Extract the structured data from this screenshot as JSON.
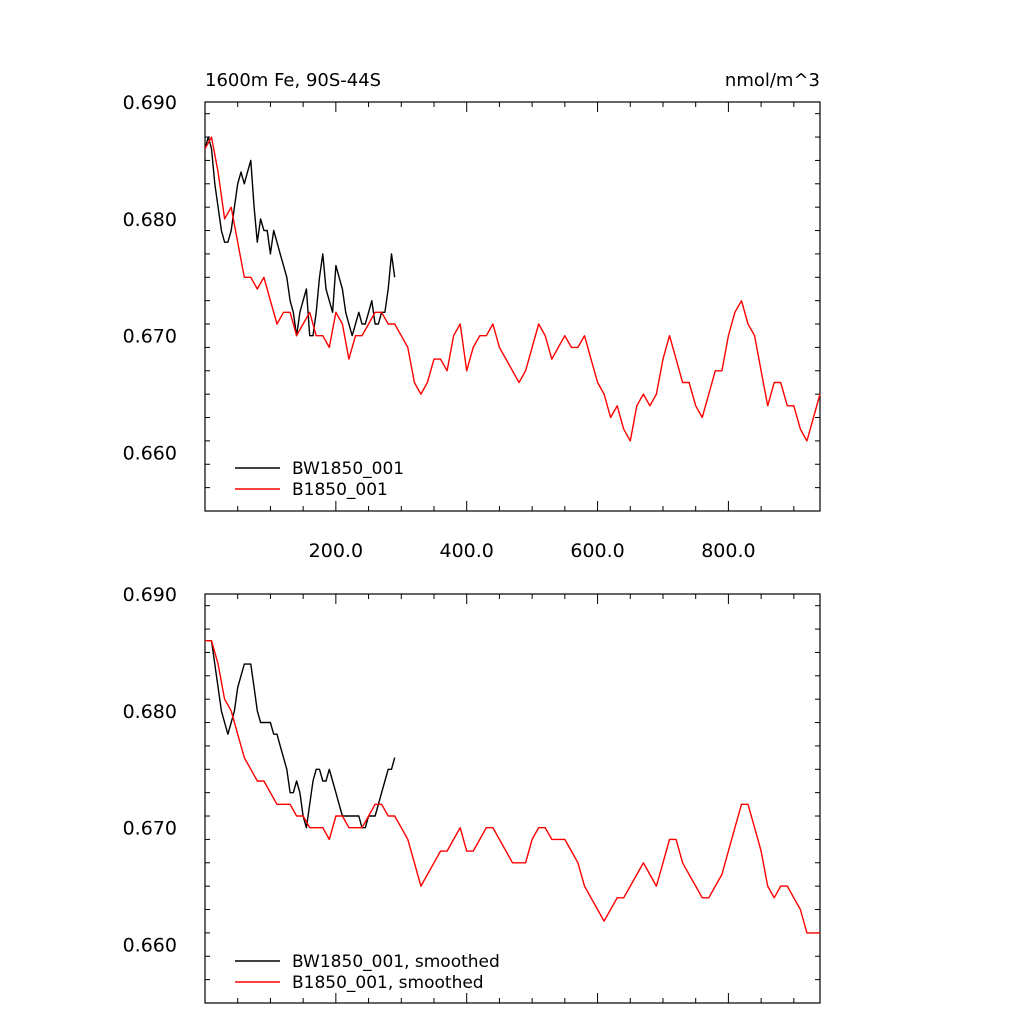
{
  "chart_data": [
    {
      "type": "line",
      "title": "1600m Fe, 90S-44S",
      "units": "nmol/m^3",
      "xlim": [
        0,
        940
      ],
      "ylim": [
        0.655,
        0.69
      ],
      "x_tick_labels": [
        "200.0",
        "400.0",
        "600.0",
        "800.0"
      ],
      "y_tick_labels": [
        "0.690",
        "0.680",
        "0.670",
        "0.660"
      ],
      "legend": "bottom-left",
      "grid": false,
      "series": [
        {
          "name": "BW1850_001",
          "color": "#000000",
          "x": [
            0,
            5,
            10,
            15,
            20,
            25,
            30,
            35,
            40,
            45,
            50,
            55,
            60,
            65,
            70,
            75,
            80,
            85,
            90,
            95,
            100,
            105,
            110,
            115,
            120,
            125,
            130,
            135,
            140,
            145,
            150,
            155,
            160,
            165,
            170,
            175,
            180,
            185,
            190,
            195,
            200,
            205,
            210,
            215,
            220,
            225,
            230,
            235,
            240,
            245,
            250,
            255,
            260,
            265,
            270,
            275,
            280,
            285,
            290
          ],
          "y": [
            0.686,
            0.687,
            0.686,
            0.683,
            0.681,
            0.679,
            0.678,
            0.678,
            0.679,
            0.681,
            0.683,
            0.684,
            0.683,
            0.684,
            0.685,
            0.681,
            0.678,
            0.68,
            0.679,
            0.679,
            0.677,
            0.679,
            0.678,
            0.677,
            0.676,
            0.675,
            0.673,
            0.672,
            0.67,
            0.672,
            0.673,
            0.674,
            0.67,
            0.67,
            0.672,
            0.675,
            0.677,
            0.674,
            0.673,
            0.672,
            0.676,
            0.675,
            0.674,
            0.672,
            0.671,
            0.67,
            0.671,
            0.672,
            0.671,
            0.671,
            0.672,
            0.673,
            0.671,
            0.671,
            0.672,
            0.672,
            0.674,
            0.677,
            0.675
          ]
        },
        {
          "name": "B1850_001",
          "color": "#ff0000",
          "x": [
            0,
            10,
            20,
            30,
            40,
            50,
            60,
            70,
            80,
            90,
            100,
            110,
            120,
            130,
            140,
            150,
            160,
            170,
            180,
            190,
            200,
            210,
            220,
            230,
            240,
            250,
            260,
            270,
            280,
            290,
            300,
            310,
            320,
            330,
            340,
            350,
            360,
            370,
            380,
            390,
            400,
            410,
            420,
            430,
            440,
            450,
            460,
            470,
            480,
            490,
            500,
            510,
            520,
            530,
            540,
            550,
            560,
            570,
            580,
            590,
            600,
            610,
            620,
            630,
            640,
            650,
            660,
            670,
            680,
            690,
            700,
            710,
            720,
            730,
            740,
            750,
            760,
            770,
            780,
            790,
            800,
            810,
            820,
            830,
            840,
            850,
            860,
            870,
            880,
            890,
            900,
            910,
            920,
            930,
            940
          ],
          "y": [
            0.686,
            0.687,
            0.684,
            0.68,
            0.681,
            0.678,
            0.675,
            0.675,
            0.674,
            0.675,
            0.673,
            0.671,
            0.672,
            0.672,
            0.67,
            0.671,
            0.672,
            0.67,
            0.67,
            0.669,
            0.672,
            0.671,
            0.668,
            0.67,
            0.67,
            0.671,
            0.672,
            0.672,
            0.671,
            0.671,
            0.67,
            0.669,
            0.666,
            0.665,
            0.666,
            0.668,
            0.668,
            0.667,
            0.67,
            0.671,
            0.667,
            0.669,
            0.67,
            0.67,
            0.671,
            0.669,
            0.668,
            0.667,
            0.666,
            0.667,
            0.669,
            0.671,
            0.67,
            0.668,
            0.669,
            0.67,
            0.669,
            0.669,
            0.67,
            0.668,
            0.666,
            0.665,
            0.663,
            0.664,
            0.662,
            0.661,
            0.664,
            0.665,
            0.664,
            0.665,
            0.668,
            0.67,
            0.668,
            0.666,
            0.666,
            0.664,
            0.663,
            0.665,
            0.667,
            0.667,
            0.67,
            0.672,
            0.673,
            0.671,
            0.67,
            0.667,
            0.664,
            0.666,
            0.666,
            0.664,
            0.664,
            0.662,
            0.661,
            0.663,
            0.665
          ]
        }
      ]
    },
    {
      "type": "line",
      "title": "",
      "xlim": [
        0,
        940
      ],
      "ylim": [
        0.655,
        0.69
      ],
      "x_tick_labels": [],
      "y_tick_labels": [
        "0.690",
        "0.680",
        "0.670",
        "0.660"
      ],
      "legend": "bottom-left",
      "grid": false,
      "series": [
        {
          "name": "BW1850_001, smoothed",
          "color": "#000000",
          "x": [
            5,
            10,
            15,
            20,
            25,
            30,
            35,
            40,
            45,
            50,
            55,
            60,
            65,
            70,
            75,
            80,
            85,
            90,
            95,
            100,
            105,
            110,
            115,
            120,
            125,
            130,
            135,
            140,
            145,
            150,
            155,
            160,
            165,
            170,
            175,
            180,
            185,
            190,
            195,
            200,
            205,
            210,
            215,
            220,
            225,
            230,
            235,
            240,
            245,
            250,
            255,
            260,
            265,
            270,
            275,
            280,
            285,
            290
          ],
          "y": [
            0.686,
            0.686,
            0.684,
            0.682,
            0.68,
            0.679,
            0.678,
            0.679,
            0.68,
            0.682,
            0.683,
            0.684,
            0.684,
            0.684,
            0.682,
            0.68,
            0.679,
            0.679,
            0.679,
            0.679,
            0.678,
            0.678,
            0.677,
            0.676,
            0.675,
            0.673,
            0.673,
            0.674,
            0.673,
            0.671,
            0.67,
            0.672,
            0.674,
            0.675,
            0.675,
            0.674,
            0.674,
            0.675,
            0.674,
            0.673,
            0.672,
            0.671,
            0.671,
            0.671,
            0.671,
            0.671,
            0.671,
            0.67,
            0.67,
            0.671,
            0.671,
            0.671,
            0.672,
            0.673,
            0.674,
            0.675,
            0.675,
            0.676
          ]
        },
        {
          "name": "B1850_001, smoothed",
          "color": "#ff0000",
          "x": [
            0,
            10,
            20,
            30,
            40,
            50,
            60,
            70,
            80,
            90,
            100,
            110,
            120,
            130,
            140,
            150,
            160,
            170,
            180,
            190,
            200,
            210,
            220,
            230,
            240,
            250,
            260,
            270,
            280,
            290,
            300,
            310,
            320,
            330,
            340,
            350,
            360,
            370,
            380,
            390,
            400,
            410,
            420,
            430,
            440,
            450,
            460,
            470,
            480,
            490,
            500,
            510,
            520,
            530,
            540,
            550,
            560,
            570,
            580,
            590,
            600,
            610,
            620,
            630,
            640,
            650,
            660,
            670,
            680,
            690,
            700,
            710,
            720,
            730,
            740,
            750,
            760,
            770,
            780,
            790,
            800,
            810,
            820,
            830,
            840,
            850,
            860,
            870,
            880,
            890,
            900,
            910,
            920,
            930,
            940
          ],
          "y": [
            0.686,
            0.686,
            0.684,
            0.681,
            0.68,
            0.678,
            0.676,
            0.675,
            0.674,
            0.674,
            0.673,
            0.672,
            0.672,
            0.672,
            0.671,
            0.671,
            0.67,
            0.67,
            0.67,
            0.669,
            0.671,
            0.671,
            0.67,
            0.67,
            0.67,
            0.671,
            0.672,
            0.672,
            0.671,
            0.671,
            0.67,
            0.669,
            0.667,
            0.665,
            0.666,
            0.667,
            0.668,
            0.668,
            0.669,
            0.67,
            0.668,
            0.668,
            0.669,
            0.67,
            0.67,
            0.669,
            0.668,
            0.667,
            0.667,
            0.667,
            0.669,
            0.67,
            0.67,
            0.669,
            0.669,
            0.669,
            0.668,
            0.667,
            0.665,
            0.664,
            0.663,
            0.662,
            0.663,
            0.664,
            0.664,
            0.665,
            0.666,
            0.667,
            0.666,
            0.665,
            0.667,
            0.669,
            0.669,
            0.667,
            0.666,
            0.665,
            0.664,
            0.664,
            0.665,
            0.666,
            0.668,
            0.67,
            0.672,
            0.672,
            0.67,
            0.668,
            0.665,
            0.664,
            0.665,
            0.665,
            0.664,
            0.663,
            0.661,
            0.661,
            0.661
          ]
        }
      ]
    }
  ]
}
